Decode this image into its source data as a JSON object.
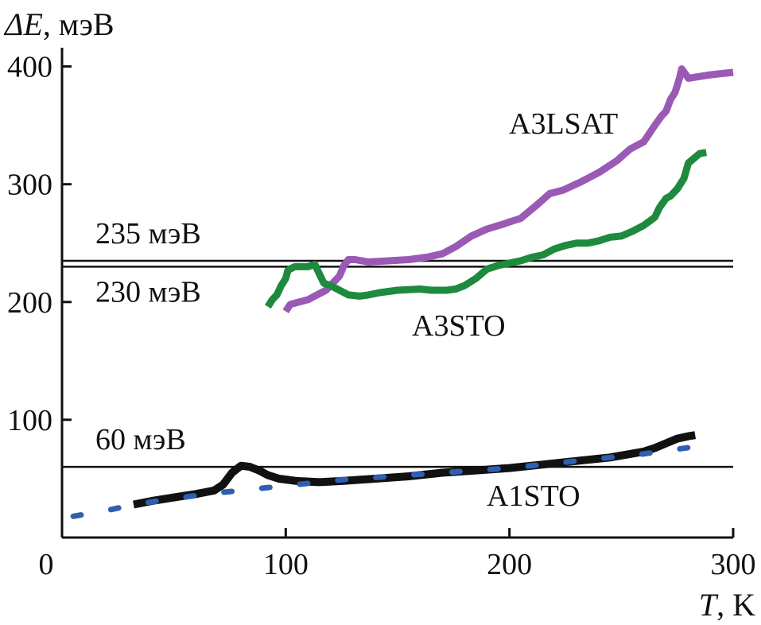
{
  "chart_data": {
    "type": "line",
    "title": "",
    "xlabel": {
      "var": "T",
      "unit": ", K"
    },
    "ylabel": {
      "var": "ΔE",
      "unit": ", мэВ"
    },
    "xlim": [
      0,
      300
    ],
    "ylim": [
      0,
      410
    ],
    "x_ticks": [
      {
        "value": 0,
        "label": "0"
      },
      {
        "value": 100,
        "label": "100"
      },
      {
        "value": 200,
        "label": "200"
      },
      {
        "value": 300,
        "label": "300"
      }
    ],
    "y_ticks": [
      {
        "value": 100,
        "label": "100"
      },
      {
        "value": 200,
        "label": "200"
      },
      {
        "value": 300,
        "label": "300"
      },
      {
        "value": 400,
        "label": "400"
      }
    ],
    "grid": false,
    "reference_lines": [
      {
        "y": 235,
        "label": "235 мэВ"
      },
      {
        "y": 230,
        "label": "230 мэВ"
      },
      {
        "y": 60,
        "label": "60 мэВ"
      }
    ],
    "series": [
      {
        "name": "A3LSAT",
        "color": "#9b59b6",
        "style": "solid",
        "x": [
          100,
          102,
          106,
          110,
          114,
          118,
          121,
          124,
          126,
          128,
          131,
          137,
          146,
          155,
          163,
          170,
          176,
          183,
          190,
          197,
          200,
          205,
          212,
          218,
          224,
          232,
          240,
          248,
          254,
          260,
          265,
          268,
          270,
          272,
          274,
          276,
          277,
          280,
          290,
          300
        ],
        "y": [
          192,
          198,
          200,
          202,
          206,
          210,
          216,
          222,
          231,
          236,
          236,
          234,
          235,
          236,
          238,
          241,
          247,
          256,
          262,
          266,
          268,
          271,
          282,
          292,
          295,
          302,
          310,
          320,
          330,
          336,
          350,
          358,
          362,
          372,
          378,
          390,
          398,
          390,
          393,
          395
        ]
      },
      {
        "name": "A3STO",
        "color": "#1e8a3e",
        "style": "solid",
        "x": [
          92,
          94,
          96,
          98,
          100,
          101,
          104,
          107,
          110,
          113,
          115,
          117,
          120,
          124,
          128,
          133,
          137,
          142,
          150,
          160,
          165,
          172,
          176,
          180,
          185,
          190,
          195,
          200,
          205,
          210,
          215,
          220,
          225,
          230,
          235,
          240,
          245,
          250,
          255,
          260,
          265,
          267,
          270,
          272,
          275,
          278,
          280,
          285,
          288
        ],
        "y": [
          196,
          202,
          206,
          214,
          220,
          227,
          230,
          230,
          230,
          232,
          224,
          216,
          214,
          210,
          206,
          205,
          206,
          208,
          210,
          211,
          210,
          210,
          211,
          214,
          220,
          228,
          231,
          233,
          235,
          238,
          240,
          245,
          248,
          250,
          250,
          252,
          255,
          256,
          260,
          265,
          272,
          280,
          288,
          290,
          296,
          305,
          318,
          326,
          327
        ]
      },
      {
        "name": "A1STO",
        "color": "#111111",
        "style": "solid",
        "x": [
          32,
          40,
          50,
          60,
          68,
          72,
          76,
          80,
          84,
          88,
          92,
          97,
          105,
          115,
          125,
          140,
          155,
          170,
          185,
          200,
          215,
          230,
          245,
          260,
          265,
          270,
          275,
          280,
          283
        ],
        "y": [
          28,
          31,
          34,
          37,
          40,
          45,
          55,
          61,
          60,
          57,
          53,
          50,
          48,
          47,
          48,
          50,
          52,
          55,
          57,
          59,
          62,
          65,
          68,
          73,
          76,
          80,
          84,
          86,
          87
        ]
      },
      {
        "name": "",
        "color": "#2e5fb0",
        "style": "dotted",
        "x": [
          5,
          20,
          35,
          50,
          65,
          80,
          95,
          110,
          125,
          140,
          155,
          170,
          185,
          200,
          215,
          230,
          245,
          260,
          275,
          290
        ],
        "y": [
          18,
          23,
          29,
          33,
          37,
          40,
          43,
          46,
          49,
          51,
          53,
          55,
          57,
          59,
          62,
          65,
          68,
          71,
          75,
          79
        ]
      }
    ]
  }
}
